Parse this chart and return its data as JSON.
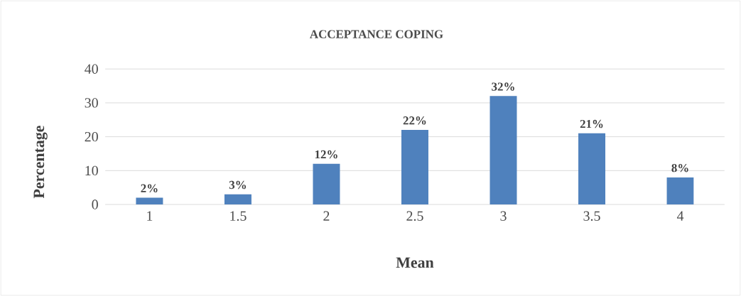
{
  "chart_data": {
    "type": "bar",
    "title": "ACCEPTANCE COPING",
    "xlabel": "Mean",
    "ylabel": "Percentage",
    "categories": [
      "1",
      "1.5",
      "2",
      "2.5",
      "3",
      "3.5",
      "4"
    ],
    "values": [
      2,
      3,
      12,
      22,
      32,
      21,
      8
    ],
    "value_labels": [
      "2%",
      "3%",
      "12%",
      "22%",
      "32%",
      "21%",
      "8%"
    ],
    "color": "#4f81bd",
    "ylim": [
      0,
      40
    ],
    "yticks": [
      0,
      10,
      20,
      30,
      40
    ],
    "grid": "y"
  }
}
